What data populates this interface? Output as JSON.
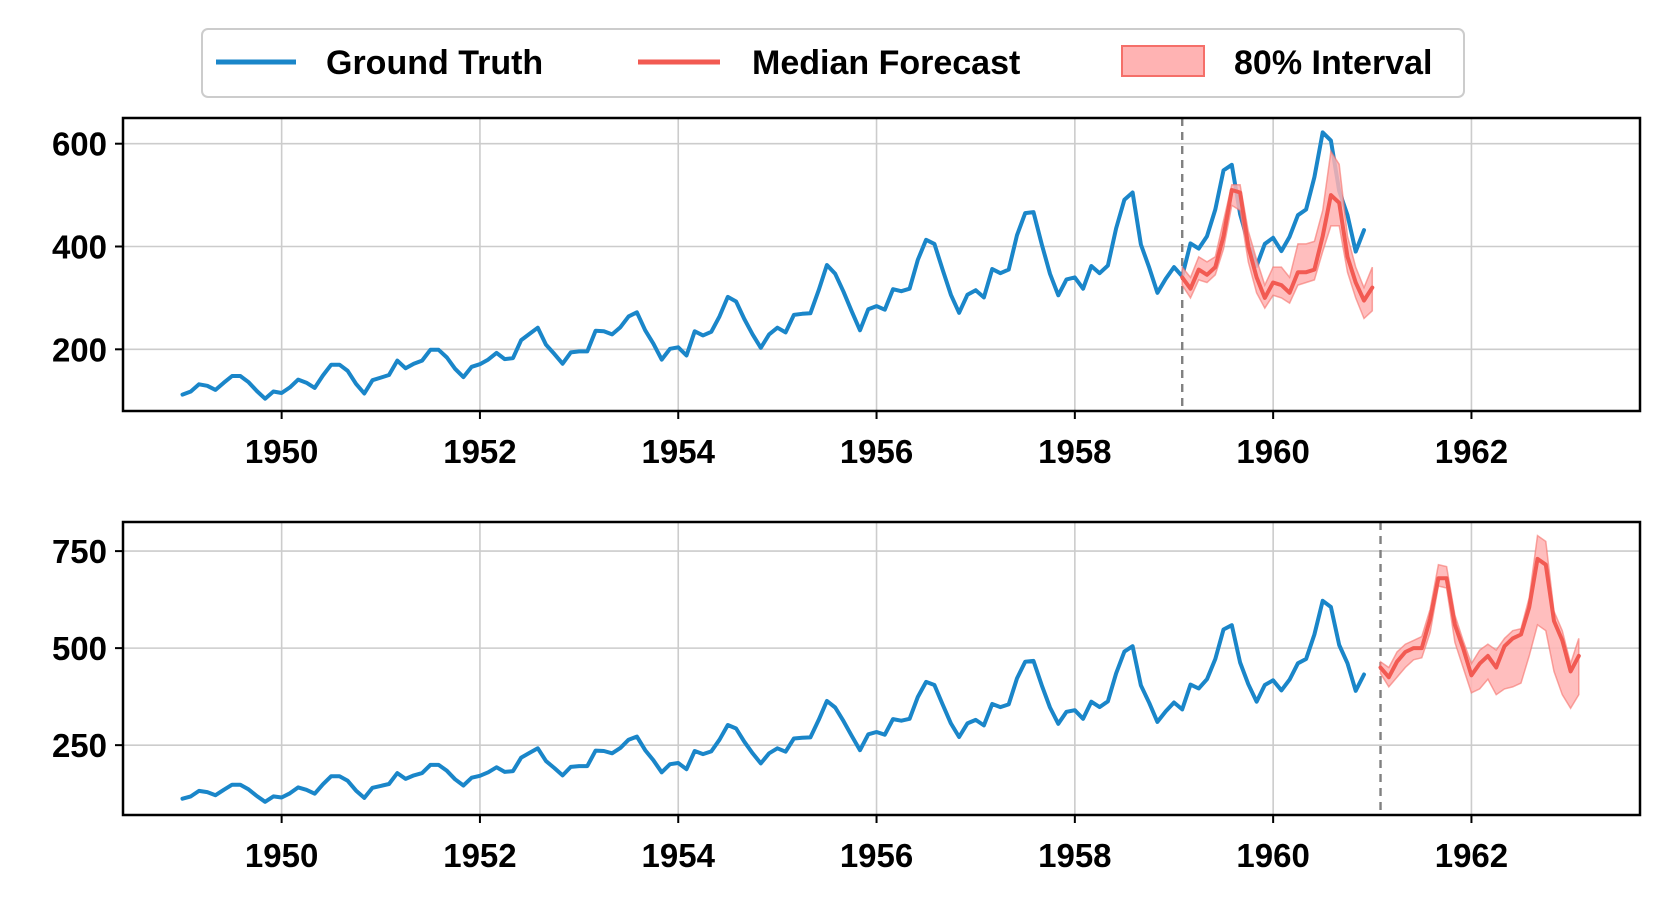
{
  "legend": {
    "ground_truth": "Ground Truth",
    "median": "Median Forecast",
    "interval": "80% Interval"
  },
  "colors": {
    "ground_truth": "#1a86c9",
    "median": "#f25a52",
    "interval_fill": "#ffb3b3",
    "interval_edge": "#f56f69"
  },
  "chart_data": [
    {
      "type": "line",
      "title": "",
      "xlabel": "",
      "ylabel": "",
      "x_start": 1949.0,
      "x_step": 0.08333,
      "xlim": [
        1948.4,
        1963.7
      ],
      "ylim": [
        80,
        650
      ],
      "xticks": [
        1950,
        1952,
        1954,
        1956,
        1958,
        1960,
        1962
      ],
      "yticks": [
        200,
        400,
        600
      ],
      "forecast_start": 1959.083,
      "grid": true,
      "series": [
        {
          "name": "Ground Truth",
          "values": [
            112,
            118,
            132,
            129,
            121,
            135,
            148,
            148,
            136,
            119,
            104,
            118,
            115,
            126,
            141,
            135,
            125,
            149,
            170,
            170,
            158,
            133,
            114,
            140,
            145,
            150,
            178,
            163,
            172,
            178,
            199,
            199,
            184,
            162,
            146,
            166,
            171,
            180,
            193,
            181,
            183,
            218,
            230,
            242,
            209,
            191,
            172,
            194,
            196,
            196,
            236,
            235,
            229,
            243,
            264,
            272,
            237,
            211,
            180,
            201,
            204,
            188,
            235,
            227,
            234,
            264,
            302,
            293,
            259,
            229,
            203,
            229,
            242,
            233,
            267,
            269,
            270,
            315,
            364,
            347,
            312,
            274,
            237,
            278,
            284,
            277,
            317,
            313,
            318,
            374,
            413,
            405,
            355,
            306,
            271,
            306,
            315,
            301,
            356,
            348,
            355,
            422,
            465,
            467,
            404,
            347,
            305,
            336,
            340,
            318,
            362,
            348,
            363,
            435,
            491,
            505,
            404,
            359,
            310,
            337,
            360,
            342,
            406,
            396,
            420,
            472,
            548,
            559,
            463,
            407,
            362,
            405,
            417,
            391,
            419,
            461,
            472,
            535,
            622,
            606,
            508,
            461,
            390,
            432
          ]
        },
        {
          "name": "Median Forecast",
          "x_start": 1959.083,
          "values": [
            340,
            318,
            355,
            345,
            360,
            420,
            510,
            505,
            400,
            340,
            300,
            330,
            325,
            310,
            350,
            350,
            355,
            420,
            500,
            485,
            380,
            330,
            295,
            320
          ],
          "lower": [
            325,
            300,
            335,
            330,
            345,
            395,
            480,
            470,
            370,
            310,
            280,
            305,
            300,
            290,
            325,
            330,
            335,
            390,
            440,
            440,
            350,
            300,
            260,
            275
          ],
          "upper": [
            360,
            340,
            380,
            370,
            380,
            450,
            520,
            520,
            430,
            375,
            325,
            360,
            360,
            340,
            405,
            405,
            410,
            470,
            585,
            560,
            420,
            360,
            320,
            360
          ]
        }
      ]
    },
    {
      "type": "line",
      "title": "",
      "xlabel": "",
      "ylabel": "",
      "x_start": 1949.0,
      "x_step": 0.08333,
      "xlim": [
        1948.4,
        1963.7
      ],
      "ylim": [
        70,
        825
      ],
      "xticks": [
        1950,
        1952,
        1954,
        1956,
        1958,
        1960,
        1962
      ],
      "yticks": [
        250,
        500,
        750
      ],
      "forecast_start": 1961.083,
      "grid": true,
      "series": [
        {
          "name": "Ground Truth",
          "values": [
            112,
            118,
            132,
            129,
            121,
            135,
            148,
            148,
            136,
            119,
            104,
            118,
            115,
            126,
            141,
            135,
            125,
            149,
            170,
            170,
            158,
            133,
            114,
            140,
            145,
            150,
            178,
            163,
            172,
            178,
            199,
            199,
            184,
            162,
            146,
            166,
            171,
            180,
            193,
            181,
            183,
            218,
            230,
            242,
            209,
            191,
            172,
            194,
            196,
            196,
            236,
            235,
            229,
            243,
            264,
            272,
            237,
            211,
            180,
            201,
            204,
            188,
            235,
            227,
            234,
            264,
            302,
            293,
            259,
            229,
            203,
            229,
            242,
            233,
            267,
            269,
            270,
            315,
            364,
            347,
            312,
            274,
            237,
            278,
            284,
            277,
            317,
            313,
            318,
            374,
            413,
            405,
            355,
            306,
            271,
            306,
            315,
            301,
            356,
            348,
            355,
            422,
            465,
            467,
            404,
            347,
            305,
            336,
            340,
            318,
            362,
            348,
            363,
            435,
            491,
            505,
            404,
            359,
            310,
            337,
            360,
            342,
            406,
            396,
            420,
            472,
            548,
            559,
            463,
            407,
            362,
            405,
            417,
            391,
            419,
            461,
            472,
            535,
            622,
            606,
            508,
            461,
            390,
            432
          ]
        },
        {
          "name": "Median Forecast",
          "x_start": 1961.083,
          "values": [
            450,
            425,
            465,
            490,
            500,
            500,
            575,
            680,
            680,
            560,
            500,
            430,
            460,
            480,
            450,
            505,
            525,
            535,
            605,
            730,
            715,
            570,
            520,
            440,
            480
          ],
          "lower": [
            435,
            400,
            425,
            450,
            470,
            475,
            540,
            660,
            655,
            515,
            450,
            385,
            395,
            420,
            380,
            395,
            400,
            410,
            480,
            560,
            545,
            440,
            380,
            345,
            380
          ],
          "upper": [
            465,
            450,
            490,
            510,
            520,
            530,
            600,
            715,
            710,
            585,
            520,
            460,
            495,
            510,
            495,
            525,
            545,
            550,
            630,
            790,
            775,
            595,
            545,
            460,
            525
          ]
        }
      ]
    }
  ]
}
